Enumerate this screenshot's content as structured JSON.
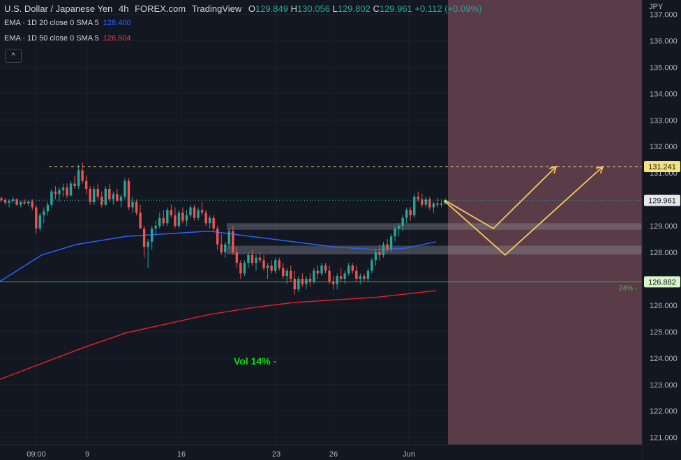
{
  "header": {
    "symbol": "U.S. Dollar / Japanese Yen",
    "interval": "4h",
    "source": "FOREX.com",
    "platform": "TradingView",
    "open": "129.849",
    "high": "130.056",
    "low": "129.802",
    "close": "129.961",
    "change": "+0.112 (+0.09%)"
  },
  "indicators": [
    {
      "label": "EMA · 1D 20 close 0 SMA 5",
      "value": "128.400",
      "color": "#2962ff"
    },
    {
      "label": "EMA · 1D 50 close 0 SMA 5",
      "value": "126.504",
      "color": "#e01f26"
    }
  ],
  "collapse_icon": "chevron-up-icon",
  "chart_data": {
    "type": "candlestick",
    "currency": "JPY",
    "ylim": [
      120.9,
      137.5
    ],
    "y_ticks": [
      "121.000",
      "122.000",
      "123.000",
      "124.000",
      "125.000",
      "126.000",
      "127.000",
      "128.000",
      "129.000",
      "130.000",
      "131.000",
      "132.000",
      "133.000",
      "134.000",
      "135.000",
      "136.000",
      "137.000"
    ],
    "x_ticks": [
      "09:00",
      "9",
      "16",
      "23",
      "26",
      "Jun"
    ],
    "colors": {
      "up": "#26a69a",
      "down": "#ef5350",
      "ema20": "#2962ff",
      "ema50": "#e01f26",
      "support": "#4caf50",
      "target": "#f5d36b",
      "arrows": "#f5c85b"
    },
    "candles": [
      [
        130.05,
        130.1,
        129.9,
        129.98
      ],
      [
        129.98,
        130.05,
        129.8,
        129.88
      ],
      [
        129.88,
        130.0,
        129.7,
        129.95
      ],
      [
        129.95,
        130.1,
        129.85,
        130.0
      ],
      [
        130.0,
        130.05,
        129.75,
        129.8
      ],
      [
        129.8,
        129.95,
        129.7,
        129.9
      ],
      [
        129.9,
        130.0,
        129.8,
        129.85
      ],
      [
        129.85,
        129.95,
        129.75,
        129.92
      ],
      [
        129.92,
        130.0,
        129.6,
        129.7
      ],
      [
        129.7,
        129.8,
        128.7,
        128.9
      ],
      [
        128.9,
        129.5,
        128.8,
        129.4
      ],
      [
        129.4,
        129.7,
        129.1,
        129.55
      ],
      [
        129.55,
        129.9,
        129.4,
        129.8
      ],
      [
        129.8,
        130.4,
        129.7,
        130.3
      ],
      [
        130.3,
        130.5,
        130.0,
        130.2
      ],
      [
        130.2,
        130.45,
        129.9,
        130.35
      ],
      [
        130.35,
        130.6,
        130.1,
        130.45
      ],
      [
        130.45,
        130.6,
        130.05,
        130.15
      ],
      [
        130.15,
        130.7,
        130.1,
        130.6
      ],
      [
        130.6,
        130.9,
        130.4,
        130.5
      ],
      [
        130.5,
        131.3,
        130.4,
        131.1
      ],
      [
        131.1,
        131.4,
        130.6,
        130.7
      ],
      [
        130.7,
        130.9,
        130.2,
        130.4
      ],
      [
        130.4,
        130.5,
        129.8,
        129.9
      ],
      [
        129.9,
        130.5,
        129.8,
        130.4
      ],
      [
        130.4,
        130.6,
        130.0,
        130.1
      ],
      [
        130.1,
        130.3,
        129.7,
        129.8
      ],
      [
        129.8,
        130.5,
        129.75,
        130.4
      ],
      [
        130.4,
        130.6,
        129.9,
        130.0
      ],
      [
        130.0,
        130.3,
        129.8,
        130.2
      ],
      [
        130.2,
        130.4,
        129.9,
        129.95
      ],
      [
        129.95,
        130.2,
        129.7,
        130.1
      ],
      [
        130.1,
        130.8,
        130.0,
        130.7
      ],
      [
        130.7,
        130.8,
        129.6,
        129.7
      ],
      [
        129.7,
        130.1,
        129.5,
        129.9
      ],
      [
        129.9,
        130.0,
        129.4,
        129.5
      ],
      [
        129.5,
        129.8,
        128.9,
        128.9
      ],
      [
        128.9,
        129.0,
        127.8,
        128.2
      ],
      [
        128.2,
        128.5,
        127.4,
        128.4
      ],
      [
        128.4,
        129.0,
        128.1,
        128.9
      ],
      [
        128.9,
        129.2,
        128.7,
        129.0
      ],
      [
        129.0,
        129.5,
        128.9,
        129.3
      ],
      [
        129.3,
        129.6,
        129.0,
        129.1
      ],
      [
        129.1,
        129.7,
        129.0,
        129.6
      ],
      [
        129.6,
        129.8,
        129.3,
        129.4
      ],
      [
        129.4,
        129.7,
        128.9,
        129.0
      ],
      [
        129.0,
        129.6,
        128.9,
        129.5
      ],
      [
        129.5,
        129.7,
        129.1,
        129.2
      ],
      [
        129.2,
        129.6,
        129.0,
        129.4
      ],
      [
        129.4,
        129.8,
        129.3,
        129.7
      ],
      [
        129.7,
        129.8,
        129.2,
        129.3
      ],
      [
        129.3,
        129.7,
        129.2,
        129.6
      ],
      [
        129.6,
        129.9,
        129.4,
        129.5
      ],
      [
        129.5,
        129.6,
        129.0,
        129.1
      ],
      [
        129.1,
        129.4,
        128.9,
        129.3
      ],
      [
        129.3,
        129.4,
        128.8,
        128.9
      ],
      [
        128.9,
        129.0,
        128.1,
        128.3
      ],
      [
        128.3,
        128.7,
        127.9,
        128.0
      ],
      [
        128.0,
        128.4,
        127.8,
        128.3
      ],
      [
        128.3,
        128.9,
        128.1,
        128.8
      ],
      [
        128.8,
        129.0,
        127.9,
        128.0
      ],
      [
        128.0,
        128.2,
        127.4,
        127.6
      ],
      [
        127.6,
        127.7,
        127.0,
        127.2
      ],
      [
        127.2,
        127.7,
        127.1,
        127.6
      ],
      [
        127.6,
        128.0,
        127.4,
        127.9
      ],
      [
        127.9,
        128.1,
        127.5,
        127.6
      ],
      [
        127.6,
        127.9,
        127.3,
        127.8
      ],
      [
        127.8,
        128.0,
        127.6,
        127.7
      ],
      [
        127.7,
        127.9,
        127.3,
        127.4
      ],
      [
        127.4,
        127.6,
        127.0,
        127.5
      ],
      [
        127.5,
        127.7,
        127.2,
        127.3
      ],
      [
        127.3,
        127.8,
        127.2,
        127.7
      ],
      [
        127.7,
        127.8,
        127.3,
        127.4
      ],
      [
        127.4,
        127.6,
        127.0,
        127.1
      ],
      [
        127.1,
        127.4,
        126.8,
        127.3
      ],
      [
        127.3,
        127.5,
        126.9,
        127.0
      ],
      [
        127.0,
        127.3,
        126.4,
        126.6
      ],
      [
        126.6,
        127.1,
        126.5,
        127.0
      ],
      [
        127.0,
        127.2,
        126.7,
        126.8
      ],
      [
        126.8,
        127.1,
        126.6,
        127.0
      ],
      [
        127.0,
        127.2,
        126.7,
        126.9
      ],
      [
        126.9,
        127.4,
        126.8,
        127.3
      ],
      [
        127.3,
        127.5,
        127.0,
        127.2
      ],
      [
        127.2,
        127.6,
        127.1,
        127.5
      ],
      [
        127.5,
        127.6,
        127.2,
        127.3
      ],
      [
        127.3,
        127.5,
        126.8,
        126.9
      ],
      [
        126.9,
        127.1,
        126.6,
        126.8
      ],
      [
        126.8,
        127.2,
        126.6,
        127.1
      ],
      [
        127.1,
        127.4,
        126.9,
        127.0
      ],
      [
        127.0,
        127.3,
        126.8,
        127.2
      ],
      [
        127.2,
        127.6,
        127.1,
        127.5
      ],
      [
        127.5,
        127.6,
        127.2,
        127.3
      ],
      [
        127.3,
        127.5,
        126.9,
        127.0
      ],
      [
        127.0,
        127.2,
        126.8,
        127.1
      ],
      [
        127.1,
        127.2,
        126.9,
        127.0
      ],
      [
        127.0,
        127.4,
        126.9,
        127.3
      ],
      [
        127.3,
        127.8,
        127.2,
        127.7
      ],
      [
        127.7,
        128.1,
        127.5,
        128.0
      ],
      [
        128.0,
        128.3,
        127.7,
        127.9
      ],
      [
        127.9,
        128.4,
        127.8,
        128.3
      ],
      [
        128.3,
        128.5,
        128.0,
        128.1
      ],
      [
        128.1,
        128.7,
        128.0,
        128.6
      ],
      [
        128.6,
        129.0,
        128.4,
        128.9
      ],
      [
        128.9,
        129.1,
        128.6,
        129.0
      ],
      [
        129.0,
        129.4,
        128.8,
        129.3
      ],
      [
        129.3,
        129.7,
        129.1,
        129.6
      ],
      [
        129.6,
        129.7,
        129.2,
        129.4
      ],
      [
        129.4,
        130.2,
        129.3,
        130.1
      ],
      [
        130.1,
        130.3,
        129.9,
        130.0
      ],
      [
        130.0,
        130.2,
        129.7,
        129.8
      ],
      [
        129.8,
        130.1,
        129.7,
        130.0
      ],
      [
        130.0,
        130.1,
        129.6,
        129.7
      ],
      [
        129.7,
        129.9,
        129.5,
        129.85
      ],
      [
        129.85,
        130.06,
        129.7,
        129.8
      ],
      [
        129.8,
        130.0,
        129.7,
        129.85
      ],
      [
        129.849,
        130.056,
        129.802,
        129.961
      ]
    ],
    "ema20": [
      [
        0,
        126.9
      ],
      [
        30,
        127.4
      ],
      [
        60,
        127.9
      ],
      [
        110,
        128.3
      ],
      [
        180,
        128.6
      ],
      [
        240,
        128.7
      ],
      [
        300,
        128.8
      ],
      [
        360,
        128.6
      ],
      [
        420,
        128.4
      ],
      [
        480,
        128.2
      ],
      [
        540,
        128.1
      ],
      [
        580,
        128.15
      ],
      [
        625,
        128.4
      ]
    ],
    "ema50": [
      [
        0,
        123.2
      ],
      [
        60,
        123.8
      ],
      [
        120,
        124.4
      ],
      [
        180,
        124.95
      ],
      [
        240,
        125.3
      ],
      [
        300,
        125.65
      ],
      [
        360,
        125.9
      ],
      [
        420,
        126.1
      ],
      [
        480,
        126.2
      ],
      [
        540,
        126.3
      ],
      [
        590,
        126.45
      ],
      [
        625,
        126.55
      ]
    ],
    "levels": [
      {
        "label": "131.241",
        "value": 131.241
      },
      {
        "label": "129.961",
        "value": 129.961
      },
      {
        "label": "126.882",
        "value": 126.882
      }
    ],
    "zones": [
      [
        128.85,
        129.1
      ],
      [
        127.92,
        128.25
      ]
    ],
    "projection": [
      [
        129.961,
        128.9,
        131.241
      ],
      [
        129.961,
        127.9,
        131.241
      ]
    ],
    "annotations": [
      "24% -",
      "Vol 14% -"
    ]
  }
}
